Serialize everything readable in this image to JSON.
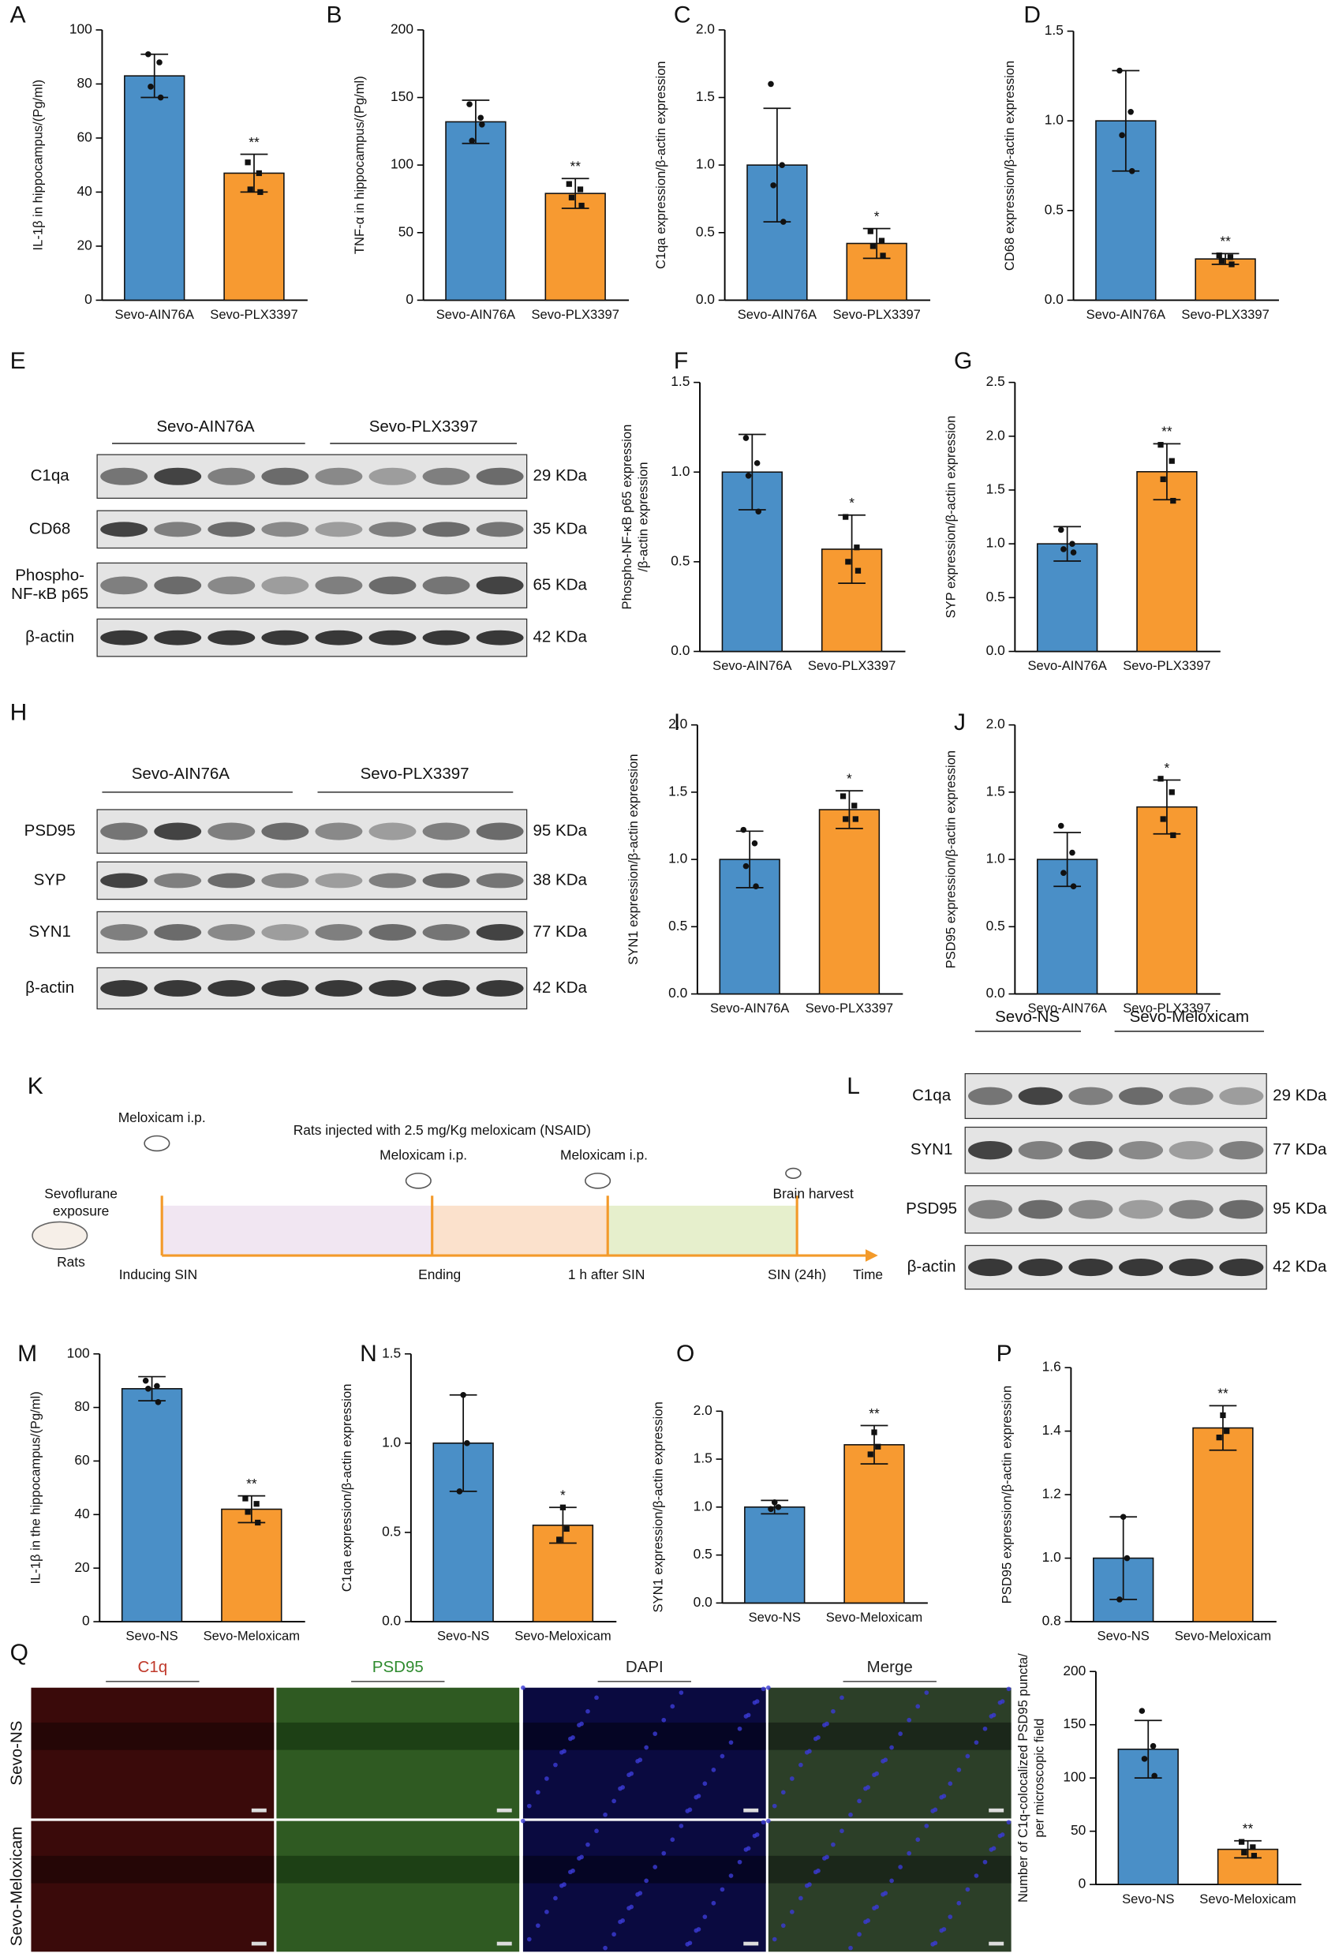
{
  "chart_data": [
    {
      "type": "bar",
      "panel": "A",
      "ylabel": [
        "IL-1β in hippocampus/(Pg/ml)"
      ],
      "categories": [
        "Sevo-AIN76A",
        "Sevo-PLX3397"
      ],
      "values": [
        83,
        47
      ],
      "errors": [
        8,
        7
      ],
      "points": [
        [
          91,
          88,
          79,
          75
        ],
        [
          51,
          47,
          41,
          40
        ]
      ],
      "annotation": "**",
      "colors": [
        "#4a8fc7",
        "#f79a31"
      ],
      "ylim": [
        0,
        100
      ],
      "yticks": [
        0,
        20,
        40,
        60,
        80,
        100
      ]
    },
    {
      "type": "bar",
      "panel": "B",
      "ylabel": [
        "TNF-α in hippocampus/(Pg/ml)"
      ],
      "categories": [
        "Sevo-AIN76A",
        "Sevo-PLX3397"
      ],
      "values": [
        132,
        79
      ],
      "errors": [
        16,
        11
      ],
      "points": [
        [
          145,
          135,
          118,
          130
        ],
        [
          86,
          82,
          76,
          70
        ]
      ],
      "annotation": "**",
      "colors": [
        "#4a8fc7",
        "#f79a31"
      ],
      "ylim": [
        0,
        200
      ],
      "yticks": [
        0,
        50,
        100,
        150,
        200
      ]
    },
    {
      "type": "bar",
      "panel": "C",
      "ylabel": [
        "C1qa expression/β-actin expression"
      ],
      "categories": [
        "Sevo-AIN76A",
        "Sevo-PLX3397"
      ],
      "values": [
        1.0,
        0.42
      ],
      "errors": [
        0.42,
        0.11
      ],
      "points": [
        [
          1.6,
          1.0,
          0.85,
          0.58
        ],
        [
          0.51,
          0.44,
          0.4,
          0.33
        ]
      ],
      "annotation": "*",
      "colors": [
        "#4a8fc7",
        "#f79a31"
      ],
      "ylim": [
        0,
        2
      ],
      "yticks": [
        {
          "value": 0,
          "label": "0.0"
        },
        0.5,
        {
          "value": 1,
          "label": "1.0"
        },
        1.5,
        {
          "value": 2,
          "label": "2.0"
        }
      ]
    },
    {
      "type": "bar",
      "panel": "D",
      "ylabel": [
        "CD68 expression/β-actin expression"
      ],
      "categories": [
        "Sevo-AIN76A",
        "Sevo-PLX3397"
      ],
      "values": [
        1.0,
        0.23
      ],
      "errors": [
        0.28,
        0.03
      ],
      "points": [
        [
          1.28,
          1.05,
          0.92,
          0.72
        ],
        [
          0.25,
          0.24,
          0.22,
          0.2
        ]
      ],
      "annotation": "**",
      "colors": [
        "#4a8fc7",
        "#f79a31"
      ],
      "ylim": [
        0,
        1.5
      ],
      "yticks": [
        {
          "value": 0,
          "label": "0.0"
        },
        0.5,
        {
          "value": 1,
          "label": "1.0"
        },
        1.5
      ]
    },
    {
      "type": "bar",
      "panel": "F",
      "ylabel": [
        "Phospho-NF-κB p65 expression",
        "/β-actin expression"
      ],
      "categories": [
        "Sevo-AIN76A",
        "Sevo-PLX3397"
      ],
      "values": [
        1.0,
        0.57
      ],
      "errors": [
        0.21,
        0.19
      ],
      "points": [
        [
          1.19,
          1.05,
          0.98,
          0.78
        ],
        [
          0.75,
          0.58,
          0.5,
          0.45
        ]
      ],
      "annotation": "*",
      "colors": [
        "#4a8fc7",
        "#f79a31"
      ],
      "ylim": [
        0,
        1.5
      ],
      "yticks": [
        {
          "value": 0,
          "label": "0.0"
        },
        0.5,
        {
          "value": 1,
          "label": "1.0"
        },
        1.5
      ]
    },
    {
      "type": "bar",
      "panel": "G",
      "ylabel": [
        "SYP expression/β-actin expression"
      ],
      "categories": [
        "Sevo-AIN76A",
        "Sevo-PLX3397"
      ],
      "values": [
        1.0,
        1.67
      ],
      "errors": [
        0.16,
        0.26
      ],
      "points": [
        [
          1.13,
          1.0,
          0.95,
          0.92
        ],
        [
          1.92,
          1.77,
          1.6,
          1.4
        ]
      ],
      "annotation": "**",
      "colors": [
        "#4a8fc7",
        "#f79a31"
      ],
      "ylim": [
        0,
        2.5
      ],
      "yticks": [
        {
          "value": 0,
          "label": "0.0"
        },
        0.5,
        {
          "value": 1,
          "label": "1.0"
        },
        1.5,
        {
          "value": 2,
          "label": "2.0"
        },
        2.5
      ]
    },
    {
      "type": "bar",
      "panel": "I",
      "ylabel": [
        "SYN1 expression/β-actin expression"
      ],
      "categories": [
        "Sevo-AIN76A",
        "Sevo-PLX3397"
      ],
      "values": [
        1.0,
        1.37
      ],
      "errors": [
        0.21,
        0.14
      ],
      "points": [
        [
          1.22,
          1.12,
          0.95,
          0.8
        ],
        [
          1.47,
          1.4,
          1.3,
          1.3
        ]
      ],
      "annotation": "*",
      "colors": [
        "#4a8fc7",
        "#f79a31"
      ],
      "ylim": [
        0,
        2
      ],
      "yticks": [
        {
          "value": 0,
          "label": "0.0"
        },
        0.5,
        {
          "value": 1,
          "label": "1.0"
        },
        1.5,
        {
          "value": 2,
          "label": "2.0"
        }
      ]
    },
    {
      "type": "bar",
      "panel": "J",
      "ylabel": [
        "PSD95 expression/β-actin expression"
      ],
      "categories": [
        "Sevo-AIN76A",
        "Sevo-PLX3397"
      ],
      "values": [
        1.0,
        1.39
      ],
      "errors": [
        0.2,
        0.2
      ],
      "points": [
        [
          1.25,
          1.05,
          0.9,
          0.8
        ],
        [
          1.6,
          1.5,
          1.3,
          1.18
        ]
      ],
      "annotation": "*",
      "colors": [
        "#4a8fc7",
        "#f79a31"
      ],
      "ylim": [
        0,
        2
      ],
      "yticks": [
        {
          "value": 0,
          "label": "0.0"
        },
        0.5,
        {
          "value": 1,
          "label": "1.0"
        },
        1.5,
        {
          "value": 2,
          "label": "2.0"
        }
      ]
    },
    {
      "type": "bar",
      "panel": "M",
      "ylabel": [
        "IL-1β in the hippocampus/(Pg/ml)"
      ],
      "categories": [
        "Sevo-NS",
        "Sevo-Meloxicam"
      ],
      "values": [
        87,
        42
      ],
      "errors": [
        4.5,
        5
      ],
      "points": [
        [
          90,
          88,
          87,
          82
        ],
        [
          46,
          44,
          41,
          37
        ]
      ],
      "annotation": "**",
      "colors": [
        "#4a8fc7",
        "#f79a31"
      ],
      "ylim": [
        0,
        100
      ],
      "yticks": [
        0,
        20,
        40,
        60,
        80,
        100
      ]
    },
    {
      "type": "bar",
      "panel": "N",
      "ylabel": [
        "C1qa expression/β-actin expression"
      ],
      "categories": [
        "Sevo-NS",
        "Sevo-Meloxicam"
      ],
      "values": [
        1.0,
        0.54
      ],
      "errors": [
        0.27,
        0.1
      ],
      "points": [
        [
          1.27,
          1.0,
          0.73
        ],
        [
          0.64,
          0.52,
          0.46
        ]
      ],
      "annotation": "*",
      "colors": [
        "#4a8fc7",
        "#f79a31"
      ],
      "ylim": [
        0,
        1.5
      ],
      "yticks": [
        {
          "value": 0,
          "label": "0.0"
        },
        0.5,
        {
          "value": 1,
          "label": "1.0"
        },
        1.5
      ]
    },
    {
      "type": "bar",
      "panel": "O",
      "ylabel": [
        "SYN1 expression/β-actin expression"
      ],
      "categories": [
        "Sevo-NS",
        "Sevo-Meloxicam"
      ],
      "values": [
        1.0,
        1.65
      ],
      "errors": [
        0.07,
        0.2
      ],
      "points": [
        [
          1.05,
          1.0,
          0.98
        ],
        [
          1.78,
          1.63,
          1.55
        ]
      ],
      "annotation": "**",
      "colors": [
        "#4a8fc7",
        "#f79a31"
      ],
      "ylim": [
        0,
        2
      ],
      "yticks": [
        {
          "value": 0,
          "label": "0.0"
        },
        0.5,
        {
          "value": 1,
          "label": "1.0"
        },
        1.5,
        {
          "value": 2,
          "label": "2.0"
        }
      ]
    },
    {
      "type": "bar",
      "panel": "P",
      "ylabel": [
        "PSD95 expression/β-actin expression"
      ],
      "categories": [
        "Sevo-NS",
        "Sevo-Meloxicam"
      ],
      "values": [
        1.0,
        1.41
      ],
      "errors": [
        0.13,
        0.07
      ],
      "points": [
        [
          1.13,
          1.0,
          0.87
        ],
        [
          1.45,
          1.4,
          1.38
        ]
      ],
      "annotation": "**",
      "colors": [
        "#4a8fc7",
        "#f79a31"
      ],
      "ylim": [
        0.8,
        1.6
      ],
      "yticks": [
        0.8,
        {
          "value": 1,
          "label": "1.0"
        },
        1.2,
        1.4,
        1.6
      ]
    },
    {
      "type": "bar",
      "ylabel": [
        "Number of C1q-colocalized PSD95 puncta/",
        "per microscopic field"
      ],
      "categories": [
        "Sevo-NS",
        "Sevo-Meloxicam"
      ],
      "values": [
        127,
        33
      ],
      "errors": [
        27,
        8
      ],
      "points": [
        [
          163,
          130,
          118,
          102
        ],
        [
          40,
          35,
          30,
          27
        ]
      ],
      "annotation": "**",
      "colors": [
        "#4a8fc7",
        "#f79a31"
      ],
      "ylim": [
        0,
        200
      ],
      "yticks": [
        0,
        50,
        100,
        150,
        200
      ]
    }
  ],
  "blots": [
    {
      "panel": "E",
      "groups": [
        "Sevo-AIN76A",
        "Sevo-PLX3397"
      ],
      "rows": [
        {
          "label": [
            "C1qa"
          ],
          "size": "29 KDa"
        },
        {
          "label": [
            "CD68"
          ],
          "size": "35 KDa"
        },
        {
          "label": [
            "Phospho-",
            "NF-κB p65"
          ],
          "size": "65 KDa"
        },
        {
          "label": [
            "β-actin"
          ],
          "size": "42 KDa"
        }
      ]
    },
    {
      "panel": "H",
      "groups": [
        "Sevo-AIN76A",
        "Sevo-PLX3397"
      ],
      "rows": [
        {
          "label": [
            "PSD95"
          ],
          "size": "95 KDa"
        },
        {
          "label": [
            "SYP"
          ],
          "size": "38 KDa"
        },
        {
          "label": [
            "SYN1"
          ],
          "size": "77 KDa"
        },
        {
          "label": [
            "β-actin"
          ],
          "size": "42 KDa"
        }
      ]
    },
    {
      "panel": "L",
      "groups": [
        "Sevo-NS",
        "Sevo-Meloxicam"
      ],
      "rows": [
        {
          "label": [
            "C1qa"
          ],
          "size": "29 KDa"
        },
        {
          "label": [
            "SYN1"
          ],
          "size": "77 KDa"
        },
        {
          "label": [
            "PSD95"
          ],
          "size": "95 KDa"
        },
        {
          "label": [
            "β-actin"
          ],
          "size": "42 KDa"
        }
      ]
    }
  ],
  "timeline": {
    "panel": "K",
    "title": "Rats injected with 2.5 mg/Kg meloxicam (NSAID)",
    "injections": [
      "Meloxicam i.p.",
      "Meloxicam i.p.",
      "Meloxicam i.p."
    ],
    "harvest": "Brain harvest",
    "exposure": [
      "Sevoflurane",
      "exposure"
    ],
    "animal": "Rats",
    "stages": [
      "Inducing SIN",
      "Ending",
      "1 h after SIN",
      "SIN (24h)"
    ],
    "axis": "Time"
  },
  "microscopy": {
    "panel": "Q",
    "channels": [
      "C1q",
      "PSD95",
      "DAPI",
      "Merge"
    ],
    "groups": [
      "Sevo-NS",
      "Sevo-Meloxicam"
    ]
  }
}
